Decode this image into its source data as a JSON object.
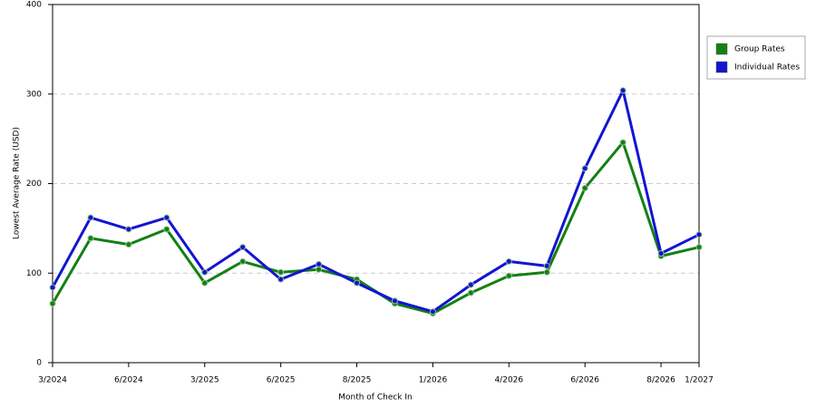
{
  "chart_data": {
    "type": "line",
    "x_label": "Month of Check In",
    "y_label": "Lowest Average Rate (USD)",
    "categories": [
      "3/2024",
      null,
      "6/2024",
      null,
      "3/2025",
      null,
      "6/2025",
      null,
      "8/2025",
      null,
      "1/2026",
      null,
      "4/2026",
      null,
      "6/2026",
      null,
      "8/2026",
      "1/2027"
    ],
    "series": [
      {
        "name": "Group Rates",
        "color": "#138013",
        "values": [
          66,
          139,
          132,
          149,
          89,
          113,
          101,
          104,
          93,
          66,
          55,
          78,
          97,
          101,
          195,
          246,
          119,
          129
        ]
      },
      {
        "name": "Individual Rates",
        "color": "#1414d2",
        "values": [
          84,
          162,
          149,
          162,
          101,
          129,
          93,
          110,
          89,
          69,
          57,
          87,
          113,
          108,
          217,
          304,
          122,
          143
        ]
      }
    ],
    "ylim": [
      0,
      400
    ],
    "yticks": [
      0,
      100,
      200,
      300,
      400
    ],
    "grid": true,
    "legend": "right"
  }
}
